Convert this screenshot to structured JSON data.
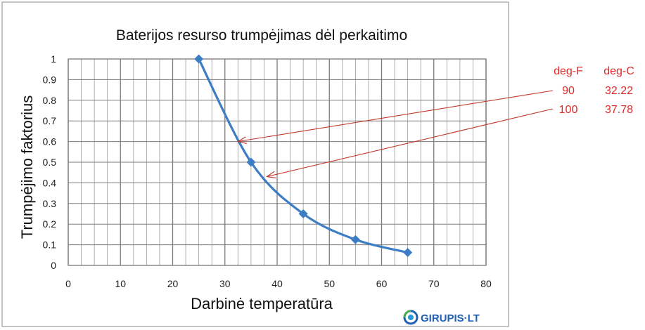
{
  "chart_data": {
    "type": "line",
    "title": "Baterijos resurso trumpėjimas dėl perkaitimo",
    "xlabel": "Darbinė temperatūra",
    "ylabel": "Trumpėjimo faktorius",
    "xlim": [
      0,
      80
    ],
    "ylim": [
      0,
      1
    ],
    "x_ticks": [
      "0",
      "10",
      "20",
      "30",
      "40",
      "50",
      "60",
      "70",
      "80"
    ],
    "y_ticks": [
      "0",
      "0.1",
      "0.2",
      "0.3",
      "0.4",
      "0.5",
      "0.6",
      "0.7",
      "0.8",
      "0.9",
      "1"
    ],
    "grid": true,
    "minor_x_step": 2.5,
    "series": [
      {
        "color": "#3c7dc4",
        "marker": "diamond",
        "points": [
          {
            "x": 25,
            "y": 1.0
          },
          {
            "x": 35,
            "y": 0.5
          },
          {
            "x": 45,
            "y": 0.25
          },
          {
            "x": 55,
            "y": 0.125
          },
          {
            "x": 65,
            "y": 0.0625
          }
        ]
      }
    ],
    "annotations": [
      {
        "from_row": 0,
        "target": {
          "x": 32.22,
          "y": 0.6
        },
        "color": "#c0392b"
      },
      {
        "from_row": 1,
        "target": {
          "x": 37.78,
          "y": 0.43
        },
        "color": "#c0392b"
      }
    ]
  },
  "conversion_table": {
    "color": "#e02a2a",
    "headers": [
      "deg-F",
      "deg-C"
    ],
    "rows": [
      [
        "90",
        "32.22"
      ],
      [
        "100",
        "37.78"
      ]
    ]
  },
  "logo": {
    "text": "GIRUPIS·LT",
    "color": "#1f5fb4"
  },
  "frame_color": "#8a8a8a"
}
